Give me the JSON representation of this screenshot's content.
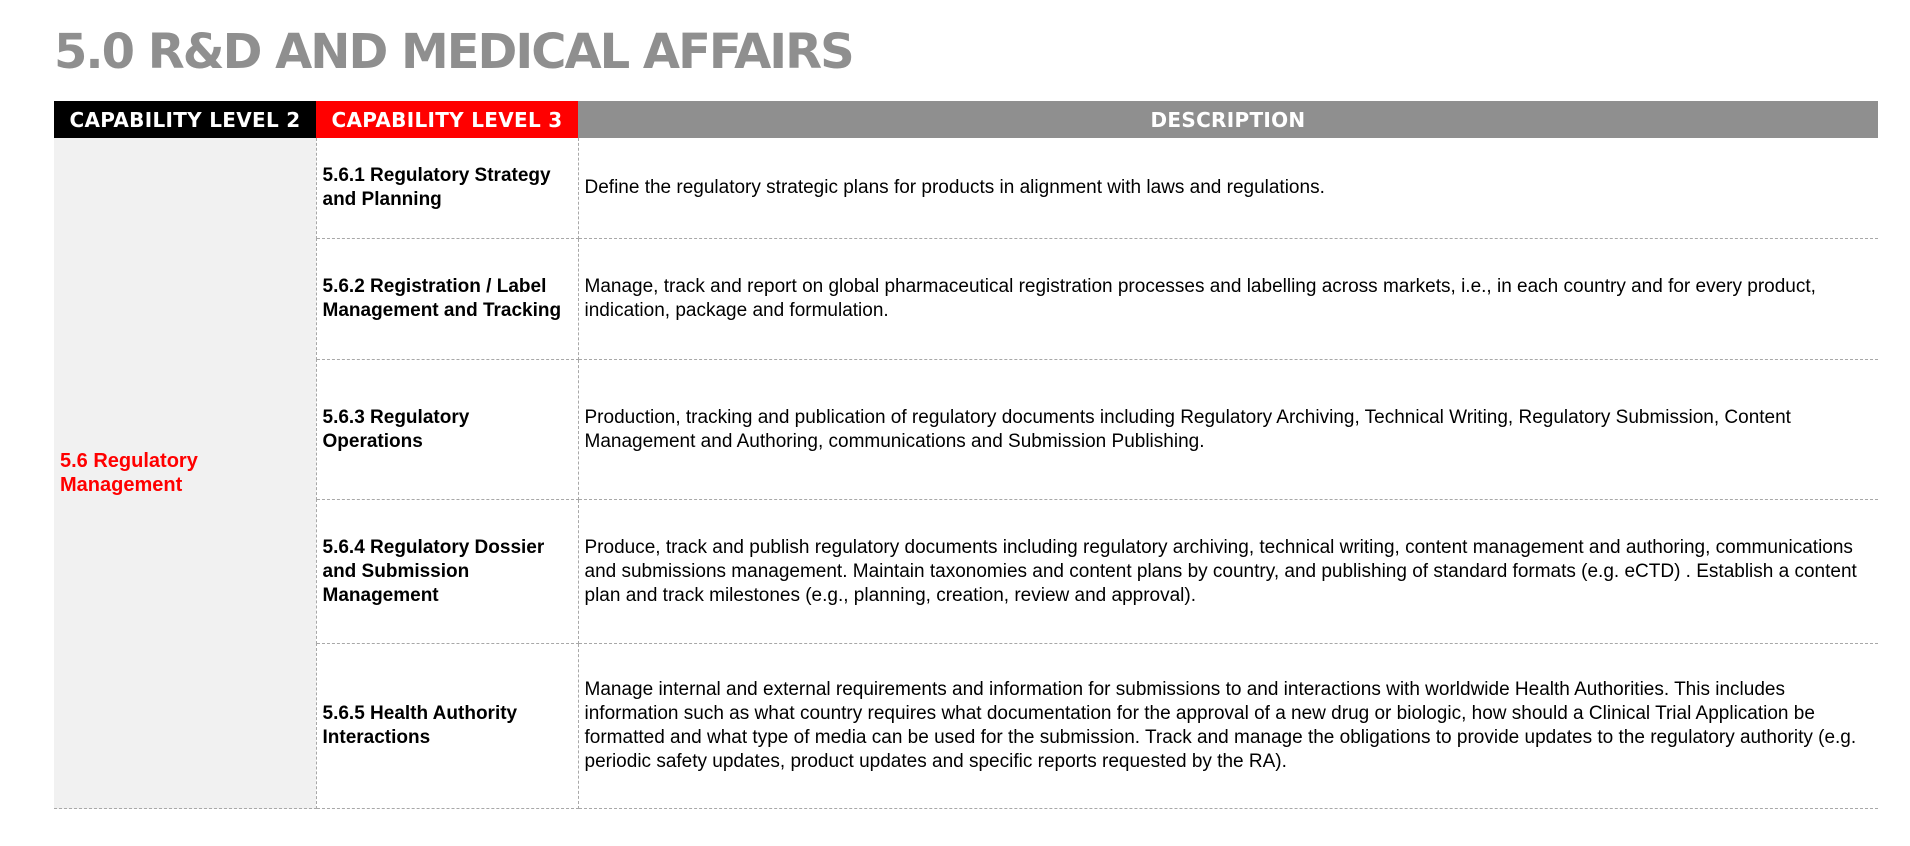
{
  "page": {
    "title": "5.0 R&D AND MEDICAL AFFAIRS"
  },
  "colors": {
    "title_gray": "#8f8f8f",
    "header_level2_bg": "#000000",
    "header_level3_bg": "#ff0000",
    "header_description_bg": "#8f8f8f",
    "level2_text": "#ff0000",
    "level2_cell_bg": "#f1f1f1"
  },
  "table": {
    "headers": {
      "level2": "CAPABILITY LEVEL 2",
      "level3": "CAPABILITY LEVEL 3",
      "description": "DESCRIPTION"
    },
    "level2_label": "5.6 Regulatory Management",
    "rows": [
      {
        "level3": "5.6.1 Regulatory Strategy and Planning",
        "description": "Define the regulatory strategic plans for products in alignment with laws and regulations."
      },
      {
        "level3": "5.6.2 Registration / Label Management and Tracking",
        "description": "Manage, track and report on global pharmaceutical registration processes and labelling across markets, i.e., in each country and for every product, indication, package and formulation."
      },
      {
        "level3": "5.6.3 Regulatory Operations",
        "description": "Production, tracking  and publication of regulatory documents including Regulatory Archiving, Technical Writing, Regulatory Submission, Content Management and Authoring, communications and Submission Publishing."
      },
      {
        "level3": "5.6.4 Regulatory Dossier and Submission Management",
        "description": "Produce, track  and publish regulatory documents including regulatory archiving, technical writing, content management and authoring, communications and submissions management. Maintain taxonomies and content plans by country, and publishing of standard formats (e.g. eCTD) . Establish a content plan and track milestones (e.g., planning, creation, review and approval)."
      },
      {
        "level3": "5.6.5 Health Authority Interactions",
        "description": "Manage internal and external requirements and information for submissions to and interactions with worldwide Health Authorities. This includes information such as what country requires what documentation for the approval of a new drug or biologic, how should a Clinical Trial Application be formatted and what type of media can be used for the submission. Track and manage the obligations to provide updates to the regulatory authority (e.g. periodic safety updates, product updates and specific reports requested by the RA)."
      }
    ]
  }
}
